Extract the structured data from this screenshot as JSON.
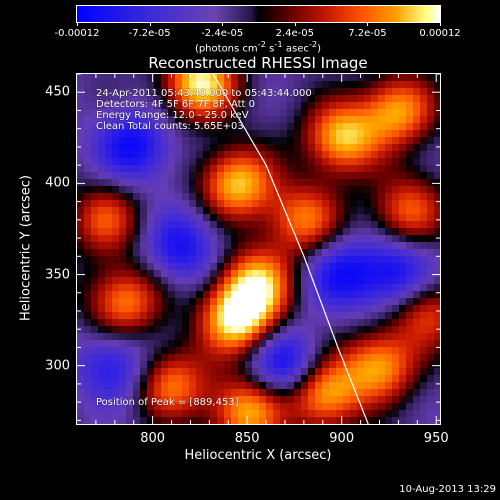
{
  "colorbar": {
    "ticks": [
      "-0.00012",
      "-7.2e-05",
      "-2.4e-05",
      "2.4e-05",
      "7.2e-05",
      "0.00012"
    ],
    "units_html": "(photons cm<sup>-2</sup> s<sup>-1</sup> asec<sup>-2</sup>)"
  },
  "chart_data": {
    "type": "heatmap",
    "title": "Reconstructed RHESSI Image",
    "xlabel": "Heliocentric X (arcsec)",
    "ylabel": "Heliocentric Y (arcsec)",
    "xlim": [
      760,
      952
    ],
    "ylim": [
      268,
      460
    ],
    "xticks": [
      "800",
      "850",
      "900",
      "950"
    ],
    "yticks": [
      "300",
      "350",
      "400",
      "450"
    ],
    "colormap": "blue-purple-black-red-orange-yellow-white",
    "value_range": [
      -0.00012,
      0.00012
    ],
    "limb_curve": {
      "points": [
        [
          832,
          460
        ],
        [
          860,
          410
        ],
        [
          880,
          360
        ],
        [
          898,
          310
        ],
        [
          914,
          268
        ]
      ]
    },
    "hot_spots": [
      {
        "x": 825,
        "y": 455,
        "v": 1.0
      },
      {
        "x": 845,
        "y": 400,
        "v": 0.9
      },
      {
        "x": 785,
        "y": 335,
        "v": 0.75
      },
      {
        "x": 845,
        "y": 325,
        "v": 1.0
      },
      {
        "x": 855,
        "y": 345,
        "v": 0.85
      },
      {
        "x": 900,
        "y": 425,
        "v": 0.9
      },
      {
        "x": 930,
        "y": 440,
        "v": 0.8
      },
      {
        "x": 935,
        "y": 385,
        "v": 0.65
      },
      {
        "x": 920,
        "y": 300,
        "v": 0.8
      },
      {
        "x": 890,
        "y": 285,
        "v": 0.9
      },
      {
        "x": 810,
        "y": 290,
        "v": 0.7
      },
      {
        "x": 850,
        "y": 275,
        "v": 0.85
      },
      {
        "x": 775,
        "y": 380,
        "v": 0.6
      },
      {
        "x": 880,
        "y": 380,
        "v": 0.7
      },
      {
        "x": 945,
        "y": 330,
        "v": 0.6
      }
    ],
    "cold_spots": [
      {
        "x": 790,
        "y": 420,
        "v": -0.6
      },
      {
        "x": 815,
        "y": 365,
        "v": -0.55
      },
      {
        "x": 870,
        "y": 300,
        "v": -0.7
      },
      {
        "x": 930,
        "y": 350,
        "v": -0.6
      },
      {
        "x": 780,
        "y": 300,
        "v": -0.5
      },
      {
        "x": 900,
        "y": 350,
        "v": -0.55
      }
    ]
  },
  "info": {
    "line1": "24-Apr-2011 05:43:40.000 to 05:43:44.000",
    "line2": "Detectors: 4F 5F 6F 7F 8F, Att 0",
    "line3": "Energy Range: 12.0 - 25.0 keV",
    "line4": "Clean     Total counts: 5.65E+03",
    "peak": "Position of Peak = [889,453]"
  },
  "footer": "10-Aug-2013 13:29"
}
